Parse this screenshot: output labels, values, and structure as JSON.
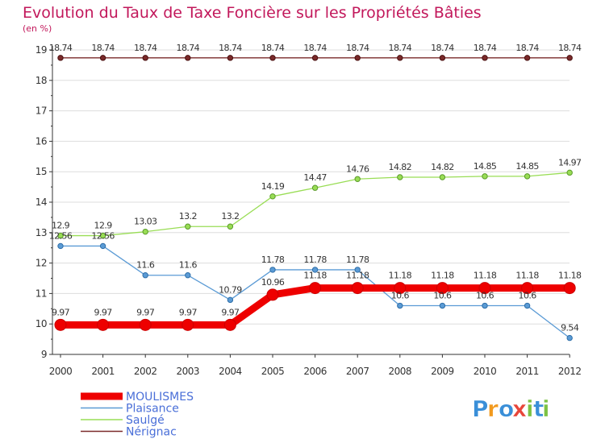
{
  "chart_data": {
    "type": "line",
    "title": "Evolution du Taux de Taxe Foncière sur les Propriétés Bâties",
    "ylabel": "(en %)",
    "xlabel": "",
    "ylim": [
      9,
      19
    ],
    "yticks": [
      9,
      10,
      11,
      12,
      13,
      14,
      15,
      16,
      17,
      18,
      19
    ],
    "categories": [
      "2000",
      "2001",
      "2002",
      "2003",
      "2004",
      "2005",
      "2006",
      "2007",
      "2008",
      "2009",
      "2010",
      "2011",
      "2012"
    ],
    "series": [
      {
        "name": "MOULISMES",
        "color": "#ee0000",
        "values": [
          9.97,
          9.97,
          9.97,
          9.97,
          9.97,
          10.96,
          11.18,
          11.18,
          11.18,
          11.18,
          11.18,
          11.18,
          11.18
        ],
        "labels": [
          "9.97",
          "9.97",
          "9.97",
          "9.97",
          "9.97",
          "10.96",
          "11.18",
          "11.18",
          "11.18",
          "11.18",
          "11.18",
          "11.18",
          "11.18"
        ]
      },
      {
        "name": "Plaisance",
        "color": "#5b9bd5",
        "values": [
          12.56,
          12.56,
          11.6,
          11.6,
          10.79,
          11.78,
          11.78,
          11.78,
          10.6,
          10.6,
          10.6,
          10.6,
          9.54
        ],
        "labels": [
          "12.56",
          "12.56",
          "11.6",
          "11.6",
          "10.79",
          "11.78",
          "11.78",
          "11.78",
          "10.6",
          "10.6",
          "10.6",
          "10.6",
          "9.54"
        ]
      },
      {
        "name": "Saulgé",
        "color": "#99dd55",
        "values": [
          12.9,
          12.9,
          13.03,
          13.2,
          13.2,
          14.19,
          14.47,
          14.76,
          14.82,
          14.82,
          14.85,
          14.85,
          14.97
        ],
        "labels": [
          "12.9",
          "12.9",
          "13.03",
          "13.2",
          "13.2",
          "14.19",
          "14.47",
          "14.76",
          "14.82",
          "14.82",
          "14.85",
          "14.85",
          "14.97"
        ]
      },
      {
        "name": "Nérignac",
        "color": "#7a2a2a",
        "values": [
          18.74,
          18.74,
          18.74,
          18.74,
          18.74,
          18.74,
          18.74,
          18.74,
          18.74,
          18.74,
          18.74,
          18.74,
          18.74
        ],
        "labels": [
          "18.74",
          "18.74",
          "18.74",
          "18.74",
          "18.74",
          "18.74",
          "18.74",
          "18.74",
          "18.74",
          "18.74",
          "18.74",
          "18.74",
          "18.74"
        ]
      }
    ]
  },
  "logo": {
    "text": "Proxiti"
  },
  "colors": {
    "title": "#c2185b",
    "legend_text": "#4a6fd8",
    "grid": "#dddddd"
  }
}
